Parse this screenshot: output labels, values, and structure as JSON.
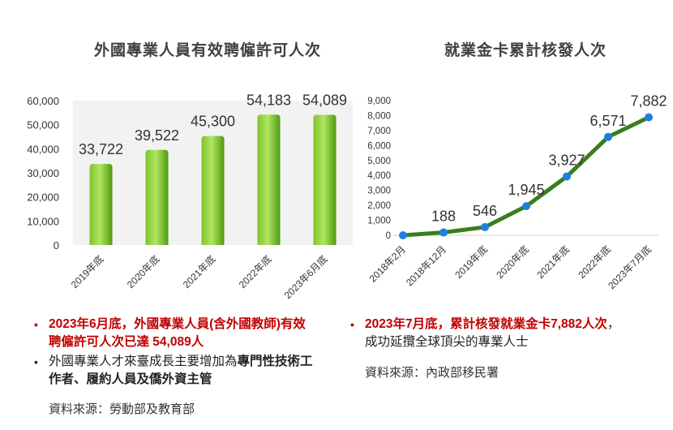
{
  "chart_data": [
    {
      "type": "bar",
      "title": "外國專業人員有效聘僱許可人次",
      "categories": [
        "2019年底",
        "2020年底",
        "2021年底",
        "2022年底",
        "2023年6月底"
      ],
      "values": [
        33722,
        39522,
        45300,
        54183,
        54089
      ],
      "value_labels": [
        "33,722",
        "39,522",
        "45,300",
        "54,183",
        "54,089"
      ],
      "ylim": [
        0,
        60000
      ],
      "yticks": [
        "0",
        "10,000",
        "20,000",
        "30,000",
        "40,000",
        "50,000",
        "60,000"
      ],
      "grid": false,
      "colors": {
        "bar_light": "#a9e05a",
        "bar_dark": "#4f9a12"
      }
    },
    {
      "type": "line",
      "title": "就業金卡累計核發人次",
      "categories": [
        "2018年2月",
        "2018年12月",
        "2019年底",
        "2020年底",
        "2021年底",
        "2022年底",
        "2023年7月底"
      ],
      "values": [
        0,
        188,
        546,
        1945,
        3927,
        6571,
        7882
      ],
      "value_labels": [
        "",
        "188",
        "546",
        "1,945",
        "3,927",
        "6,571",
        "7,882"
      ],
      "ylim": [
        0,
        9000
      ],
      "yticks": [
        "0",
        "1,000",
        "2,000",
        "3,000",
        "4,000",
        "5,000",
        "6,000",
        "7,000",
        "8,000",
        "9,000"
      ],
      "grid": false,
      "colors": {
        "line": "#3a7d1e",
        "marker": "#1e7fe0"
      }
    }
  ],
  "left_notes": {
    "note1": "2023年6月底，外國專業人員(含外國教師)有效聘僱許可人次已達 54,089人",
    "note2_plain": "外國專業人才來臺成長主要增加為",
    "note2_bold": "專門性技術工作者、履約人員及僑外資主管",
    "source": "資料來源：勞動部及教育部"
  },
  "right_notes": {
    "note1_red": "2023年7月底，累計核發就業金卡7,882人次",
    "note1_plain": "，成功延攬全球頂尖的專業人士",
    "source": "資料來源：內政部移民署"
  },
  "bullet": "•"
}
